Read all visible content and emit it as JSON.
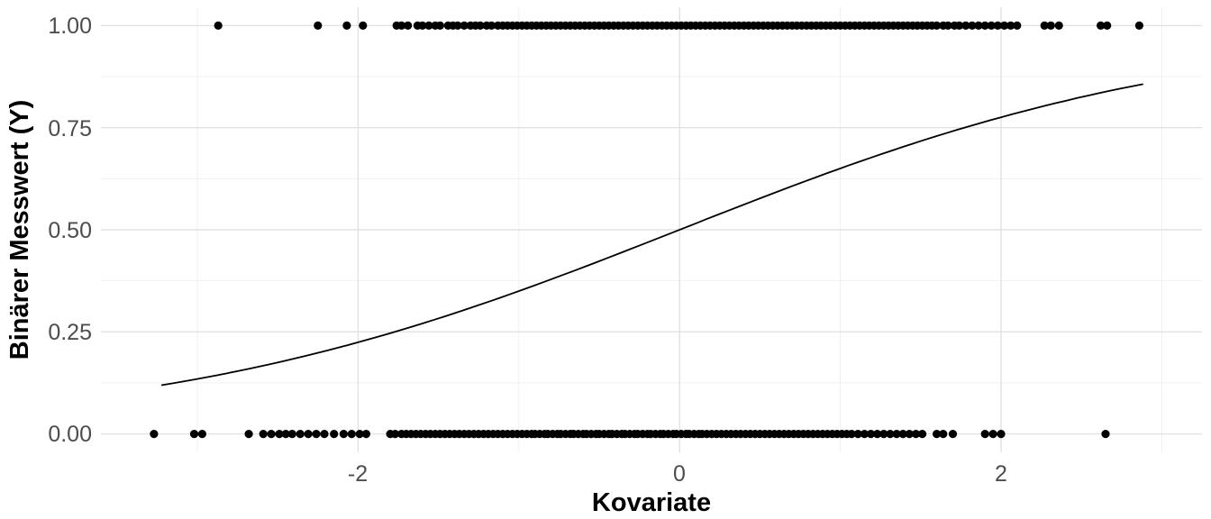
{
  "chart_data": {
    "type": "scatter",
    "title": "",
    "xlabel": "Kovariate",
    "ylabel": "Binärer Messwert (Y)",
    "xlim": [
      -3.6,
      3.25
    ],
    "ylim": [
      -0.045,
      1.045
    ],
    "grid": {
      "background": "#ffffff",
      "major_color": "#e2e2e2",
      "minor_color": "#f0f0f0",
      "grid_on": true,
      "legend": "none"
    },
    "point_color": "#000000",
    "x_major_ticks": [
      {
        "value": -2,
        "label": "-2"
      },
      {
        "value": 0,
        "label": "0"
      },
      {
        "value": 2,
        "label": "2"
      }
    ],
    "x_minor_ticks": [
      -3,
      -1,
      1,
      3
    ],
    "y_major_ticks": [
      {
        "value": 0.0,
        "label": "0.00"
      },
      {
        "value": 0.25,
        "label": "0.25"
      },
      {
        "value": 0.5,
        "label": "0.50"
      },
      {
        "value": 0.75,
        "label": "0.75"
      },
      {
        "value": 1.0,
        "label": "1.00"
      }
    ],
    "y_minor_ticks": [
      0.125,
      0.375,
      0.625,
      0.875
    ],
    "curve": {
      "name": "logistic-regression-fit",
      "model": "logistic",
      "intercept": 0.0,
      "slope": 0.62,
      "x_start": -3.22,
      "x_end": 2.88,
      "color": "#000000",
      "width": 1.8
    },
    "series": [
      {
        "name": "observations-y1",
        "y": 1,
        "x": [
          -2.87,
          -2.25,
          -2.07,
          -1.97,
          -1.76,
          -1.73,
          -1.69,
          -1.63,
          -1.6,
          -1.56,
          -1.52,
          -1.49,
          -1.44,
          -1.41,
          -1.38,
          -1.34,
          -1.3,
          -1.27,
          -1.24,
          -1.2,
          -1.17,
          -1.13,
          -1.1,
          -1.07,
          -1.04,
          -1.01,
          -0.98,
          -0.95,
          -0.92,
          -0.89,
          -0.86,
          -0.83,
          -0.8,
          -0.77,
          -0.74,
          -0.71,
          -0.68,
          -0.65,
          -0.62,
          -0.59,
          -0.56,
          -0.53,
          -0.5,
          -0.47,
          -0.44,
          -0.41,
          -0.38,
          -0.35,
          -0.32,
          -0.29,
          -0.26,
          -0.23,
          -0.2,
          -0.17,
          -0.14,
          -0.11,
          -0.08,
          -0.05,
          -0.02,
          0.01,
          0.04,
          0.07,
          0.1,
          0.13,
          0.16,
          0.19,
          0.22,
          0.25,
          0.28,
          0.31,
          0.34,
          0.37,
          0.4,
          0.43,
          0.46,
          0.49,
          0.52,
          0.55,
          0.58,
          0.61,
          0.64,
          0.67,
          0.7,
          0.73,
          0.76,
          0.79,
          0.82,
          0.85,
          0.88,
          0.91,
          0.94,
          0.97,
          1.0,
          1.03,
          1.06,
          1.09,
          1.12,
          1.15,
          1.18,
          1.21,
          1.24,
          1.27,
          1.3,
          1.33,
          1.36,
          1.39,
          1.42,
          1.45,
          1.48,
          1.51,
          1.54,
          1.57,
          1.6,
          1.64,
          1.67,
          1.71,
          1.74,
          1.78,
          1.82,
          1.86,
          1.9,
          1.94,
          1.98,
          2.02,
          2.06,
          2.1,
          2.27,
          2.31,
          2.36,
          2.62,
          2.66,
          2.86
        ]
      },
      {
        "name": "observations-y0",
        "y": 0,
        "x": [
          -3.27,
          -3.02,
          -2.97,
          -2.68,
          -2.59,
          -2.54,
          -2.49,
          -2.45,
          -2.41,
          -2.36,
          -2.31,
          -2.26,
          -2.21,
          -2.15,
          -2.09,
          -2.04,
          -1.99,
          -1.95,
          -1.8,
          -1.77,
          -1.73,
          -1.7,
          -1.67,
          -1.64,
          -1.61,
          -1.58,
          -1.55,
          -1.52,
          -1.49,
          -1.46,
          -1.43,
          -1.4,
          -1.37,
          -1.34,
          -1.31,
          -1.28,
          -1.25,
          -1.22,
          -1.19,
          -1.16,
          -1.13,
          -1.1,
          -1.07,
          -1.04,
          -1.01,
          -0.98,
          -0.95,
          -0.92,
          -0.9,
          -0.87,
          -0.84,
          -0.82,
          -0.79,
          -0.76,
          -0.74,
          -0.71,
          -0.68,
          -0.66,
          -0.63,
          -0.6,
          -0.58,
          -0.55,
          -0.52,
          -0.5,
          -0.47,
          -0.44,
          -0.42,
          -0.39,
          -0.36,
          -0.34,
          -0.31,
          -0.28,
          -0.26,
          -0.23,
          -0.2,
          -0.18,
          -0.15,
          -0.12,
          -0.1,
          -0.07,
          -0.04,
          -0.02,
          0.01,
          0.04,
          0.06,
          0.09,
          0.12,
          0.14,
          0.17,
          0.2,
          0.23,
          0.26,
          0.29,
          0.32,
          0.35,
          0.38,
          0.41,
          0.44,
          0.47,
          0.5,
          0.53,
          0.56,
          0.59,
          0.62,
          0.65,
          0.68,
          0.71,
          0.74,
          0.77,
          0.8,
          0.83,
          0.86,
          0.89,
          0.92,
          0.95,
          0.98,
          1.01,
          1.04,
          1.07,
          1.11,
          1.15,
          1.19,
          1.23,
          1.27,
          1.31,
          1.35,
          1.39,
          1.43,
          1.47,
          1.51,
          1.6,
          1.64,
          1.7,
          1.9,
          1.95,
          2.0,
          2.65
        ]
      }
    ]
  }
}
